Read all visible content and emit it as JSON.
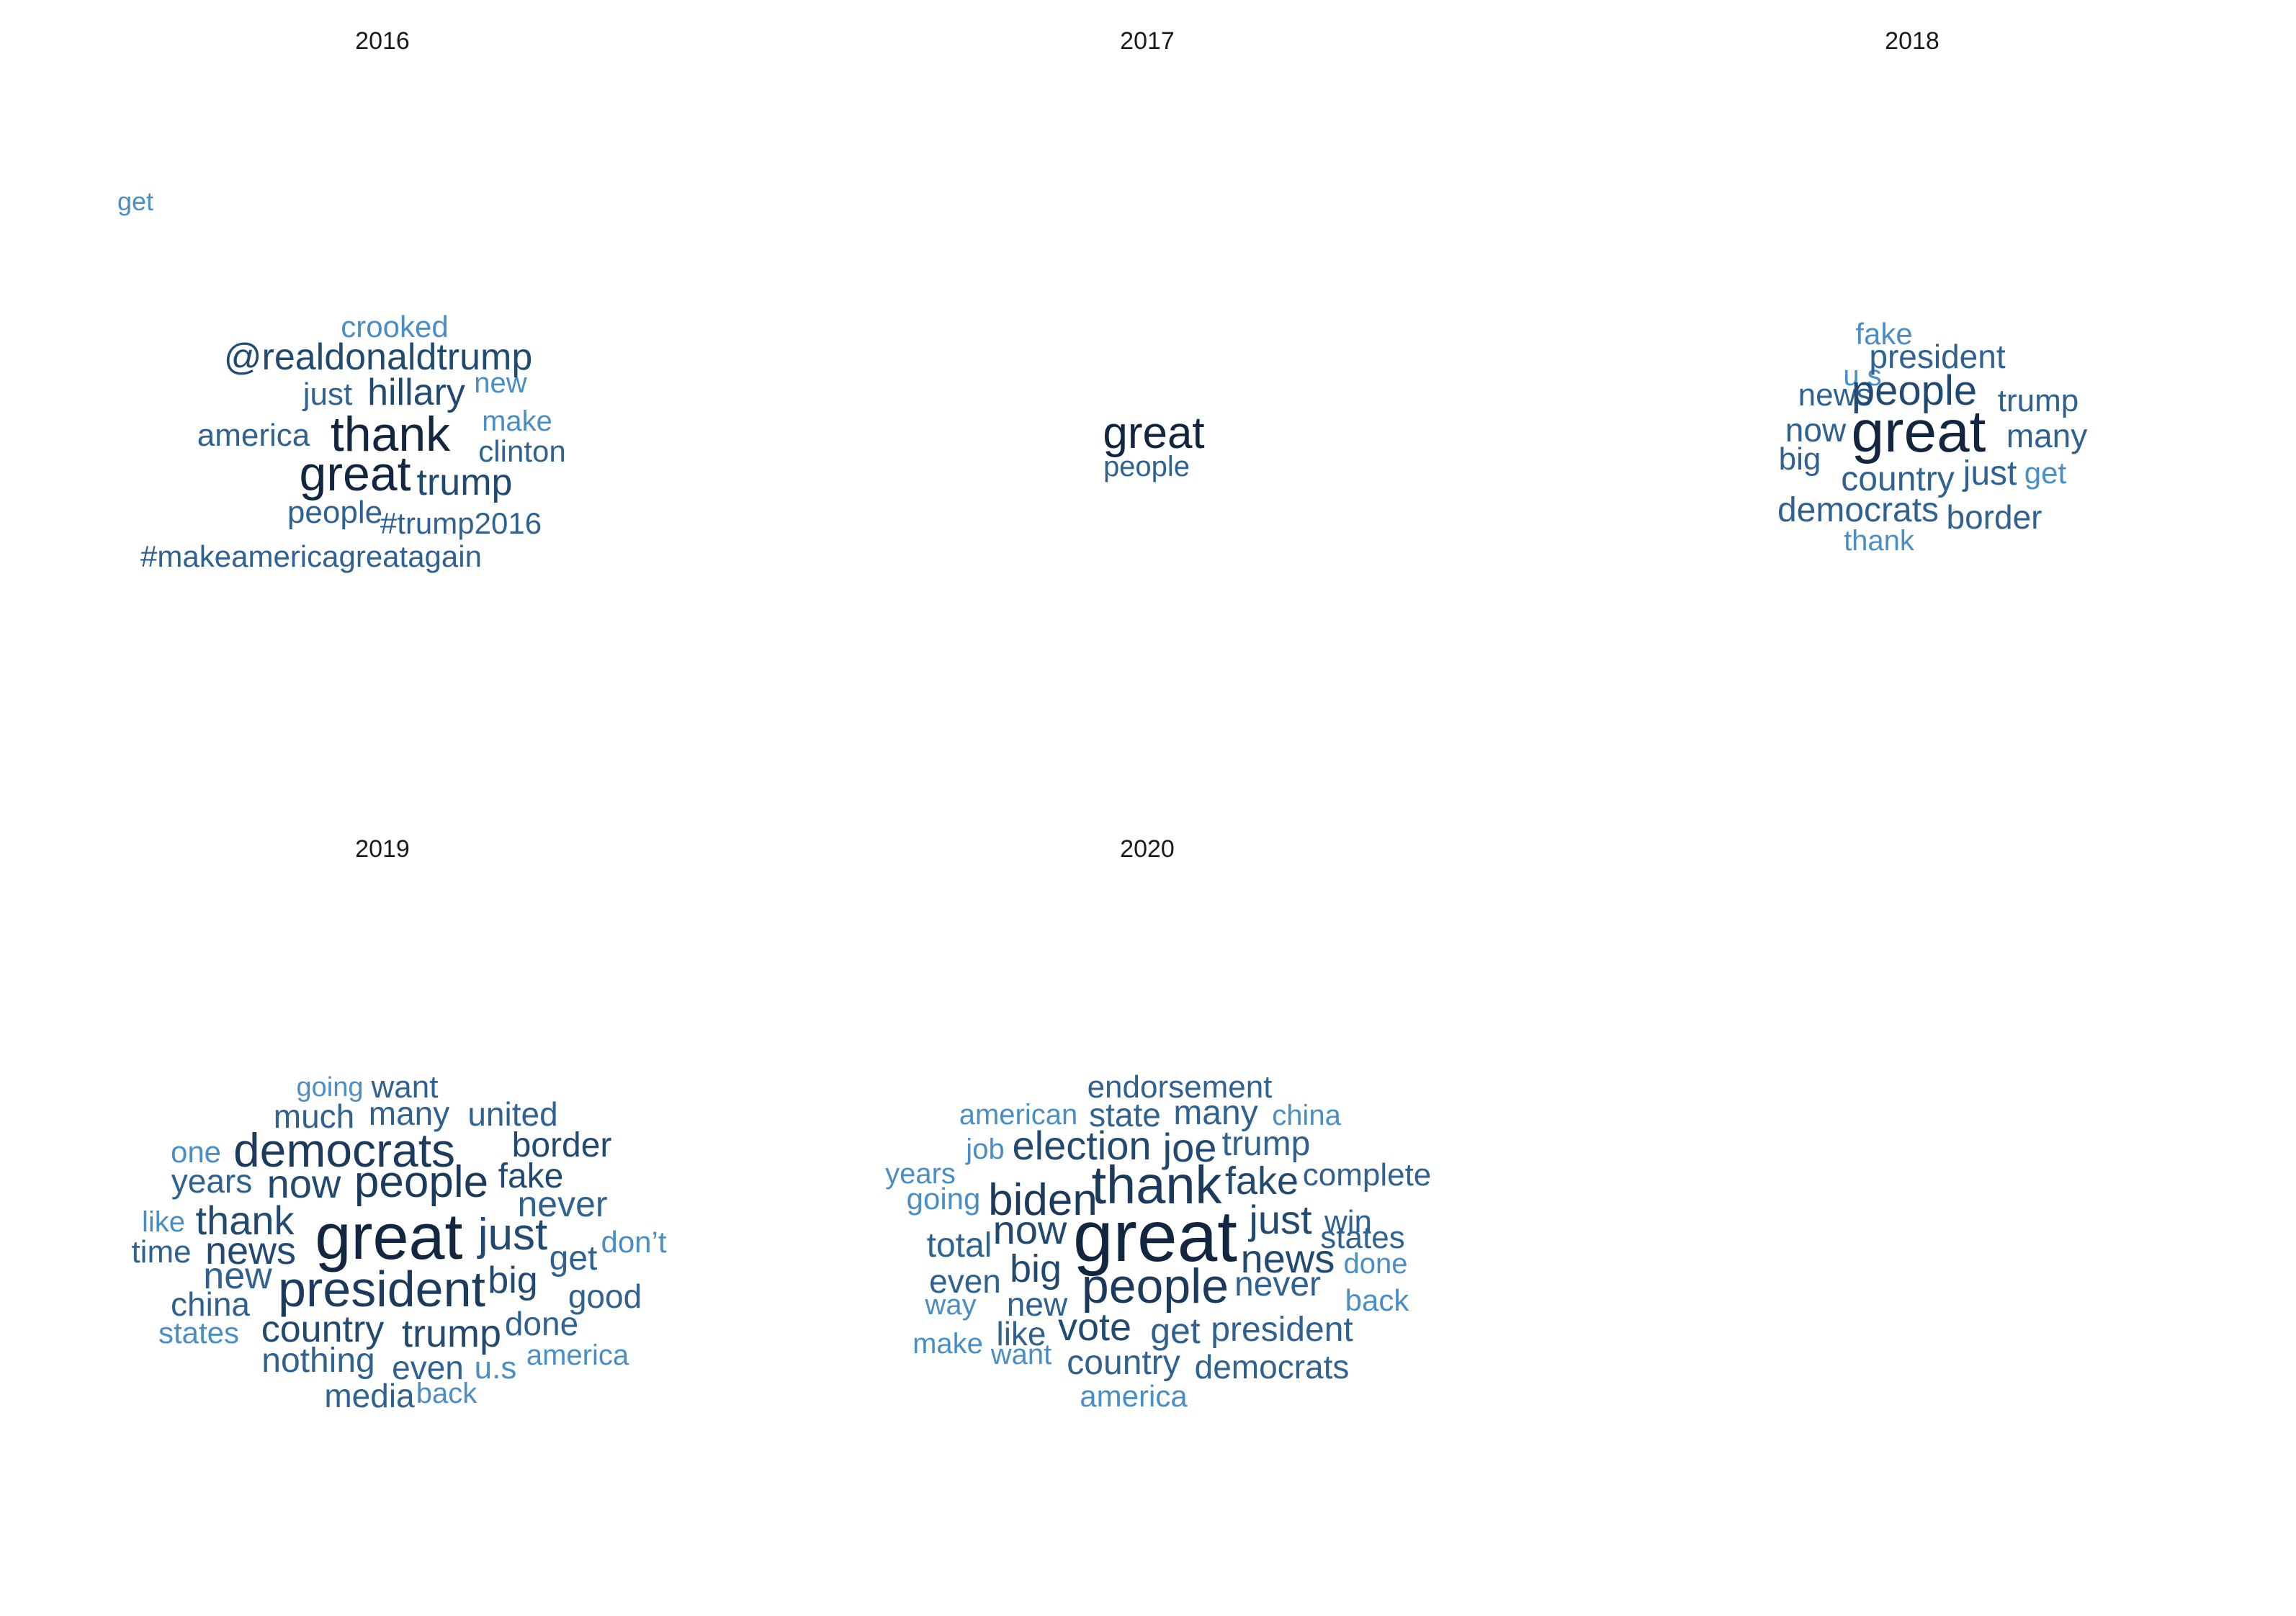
{
  "chart_data": [
    {
      "type": "wordcloud",
      "title": "2016",
      "words": [
        {
          "text": "crooked",
          "weight": 1
        },
        {
          "text": "@realdonaldtrump",
          "weight": 3
        },
        {
          "text": "get",
          "weight": 1
        },
        {
          "text": "just",
          "weight": 2
        },
        {
          "text": "hillary",
          "weight": 3
        },
        {
          "text": "new",
          "weight": 1
        },
        {
          "text": "america",
          "weight": 2
        },
        {
          "text": "thank",
          "weight": 5
        },
        {
          "text": "make",
          "weight": 1
        },
        {
          "text": "clinton",
          "weight": 2
        },
        {
          "text": "great",
          "weight": 5
        },
        {
          "text": "trump",
          "weight": 3
        },
        {
          "text": "people",
          "weight": 2
        },
        {
          "text": "#trump2016",
          "weight": 2
        },
        {
          "text": "#makeamericagreatagain",
          "weight": 2
        }
      ]
    },
    {
      "type": "wordcloud",
      "title": "2017",
      "words": [
        {
          "text": "great",
          "weight": 5
        },
        {
          "text": "people",
          "weight": 2
        }
      ]
    },
    {
      "type": "wordcloud",
      "title": "2018",
      "words": [
        {
          "text": "fake",
          "weight": 1
        },
        {
          "text": "u.s",
          "weight": 1
        },
        {
          "text": "president",
          "weight": 2
        },
        {
          "text": "news",
          "weight": 2
        },
        {
          "text": "people",
          "weight": 3
        },
        {
          "text": "trump",
          "weight": 2
        },
        {
          "text": "now",
          "weight": 2
        },
        {
          "text": "great",
          "weight": 5
        },
        {
          "text": "many",
          "weight": 2
        },
        {
          "text": "big",
          "weight": 2
        },
        {
          "text": "country",
          "weight": 2
        },
        {
          "text": "just",
          "weight": 2
        },
        {
          "text": "get",
          "weight": 1
        },
        {
          "text": "democrats",
          "weight": 2
        },
        {
          "text": "border",
          "weight": 2
        },
        {
          "text": "thank",
          "weight": 1
        }
      ]
    },
    {
      "type": "wordcloud",
      "title": "2019",
      "words": [
        {
          "text": "going",
          "weight": 1
        },
        {
          "text": "want",
          "weight": 2
        },
        {
          "text": "much",
          "weight": 2
        },
        {
          "text": "many",
          "weight": 2
        },
        {
          "text": "united",
          "weight": 2
        },
        {
          "text": "one",
          "weight": 1
        },
        {
          "text": "democrats",
          "weight": 4
        },
        {
          "text": "border",
          "weight": 3
        },
        {
          "text": "years",
          "weight": 2
        },
        {
          "text": "now",
          "weight": 3
        },
        {
          "text": "people",
          "weight": 4
        },
        {
          "text": "fake",
          "weight": 3
        },
        {
          "text": "never",
          "weight": 2
        },
        {
          "text": "like",
          "weight": 1
        },
        {
          "text": "thank",
          "weight": 3
        },
        {
          "text": "great",
          "weight": 5
        },
        {
          "text": "just",
          "weight": 3
        },
        {
          "text": "don’t",
          "weight": 1
        },
        {
          "text": "time",
          "weight": 2
        },
        {
          "text": "news",
          "weight": 3
        },
        {
          "text": "get",
          "weight": 2
        },
        {
          "text": "new",
          "weight": 2
        },
        {
          "text": "president",
          "weight": 4
        },
        {
          "text": "big",
          "weight": 3
        },
        {
          "text": "good",
          "weight": 2
        },
        {
          "text": "china",
          "weight": 2
        },
        {
          "text": "done",
          "weight": 2
        },
        {
          "text": "states",
          "weight": 1
        },
        {
          "text": "country",
          "weight": 3
        },
        {
          "text": "trump",
          "weight": 3
        },
        {
          "text": "nothing",
          "weight": 2
        },
        {
          "text": "america",
          "weight": 1
        },
        {
          "text": "even",
          "weight": 2
        },
        {
          "text": "u.s",
          "weight": 1
        },
        {
          "text": "media",
          "weight": 2
        },
        {
          "text": "back",
          "weight": 1
        }
      ]
    },
    {
      "type": "wordcloud",
      "title": "2020",
      "words": [
        {
          "text": "endorsement",
          "weight": 2
        },
        {
          "text": "american",
          "weight": 1
        },
        {
          "text": "state",
          "weight": 2
        },
        {
          "text": "many",
          "weight": 2
        },
        {
          "text": "china",
          "weight": 1
        },
        {
          "text": "job",
          "weight": 1
        },
        {
          "text": "election",
          "weight": 3
        },
        {
          "text": "joe",
          "weight": 3
        },
        {
          "text": "trump",
          "weight": 2
        },
        {
          "text": "years",
          "weight": 1
        },
        {
          "text": "complete",
          "weight": 2
        },
        {
          "text": "going",
          "weight": 1
        },
        {
          "text": "biden",
          "weight": 4
        },
        {
          "text": "thank",
          "weight": 4
        },
        {
          "text": "fake",
          "weight": 3
        },
        {
          "text": "win",
          "weight": 2
        },
        {
          "text": "total",
          "weight": 2
        },
        {
          "text": "now",
          "weight": 3
        },
        {
          "text": "great",
          "weight": 5
        },
        {
          "text": "just",
          "weight": 3
        },
        {
          "text": "states",
          "weight": 2
        },
        {
          "text": "news",
          "weight": 3
        },
        {
          "text": "done",
          "weight": 1
        },
        {
          "text": "even",
          "weight": 2
        },
        {
          "text": "big",
          "weight": 3
        },
        {
          "text": "people",
          "weight": 4
        },
        {
          "text": "never",
          "weight": 2
        },
        {
          "text": "way",
          "weight": 1
        },
        {
          "text": "new",
          "weight": 2
        },
        {
          "text": "back",
          "weight": 1
        },
        {
          "text": "vote",
          "weight": 3
        },
        {
          "text": "get",
          "weight": 2
        },
        {
          "text": "president",
          "weight": 2
        },
        {
          "text": "make",
          "weight": 1
        },
        {
          "text": "like",
          "weight": 2
        },
        {
          "text": "want",
          "weight": 1
        },
        {
          "text": "country",
          "weight": 2
        },
        {
          "text": "democrats",
          "weight": 2
        },
        {
          "text": "america",
          "weight": 1
        }
      ]
    }
  ],
  "colors": {
    "w5": "#13263f",
    "w4": "#1c3b5c",
    "w3": "#224a71",
    "w2": "#2f6191",
    "w1": "#4a8ec4"
  }
}
